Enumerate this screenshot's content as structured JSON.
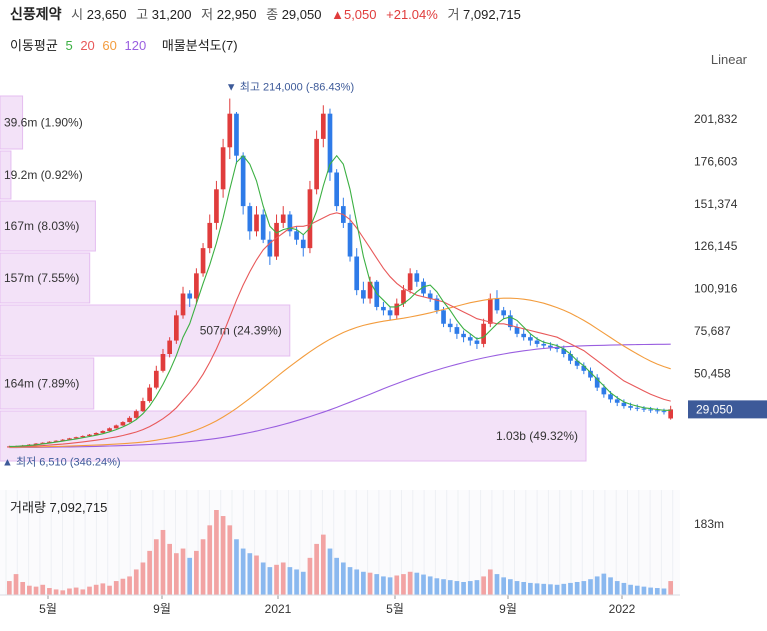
{
  "header": {
    "name": "신풍제약",
    "open_label": "시",
    "open": "23,650",
    "high_label": "고",
    "high": "31,200",
    "low_label": "저",
    "low": "22,950",
    "close_label": "종",
    "close": "29,050",
    "change": "▲5,050",
    "change_pct": "+21.04%",
    "volume_label": "거",
    "volume": "7,092,715",
    "ma_label": "이동평균",
    "ma5": "5",
    "ma20": "20",
    "ma60": "60",
    "ma120": "120",
    "volume_profile_label": "매물분석도(7)"
  },
  "scale_mode": "Linear",
  "colors": {
    "up": "#e03c3c",
    "down": "#2e7be8",
    "ma5": "#3cb043",
    "ma20": "#e8595a",
    "ma60": "#f39c3d",
    "ma120": "#9a5fe0",
    "profile_fill": "#f3e2f8",
    "profile_stroke": "#e4bdf0",
    "price_tag": "#3d5a99"
  },
  "chart_data": {
    "type": "candlestick",
    "y_ticks": [
      "201,832",
      "176,603",
      "151,374",
      "126,145",
      "100,916",
      "75,687",
      "50,458"
    ],
    "y_tick_values": [
      201832,
      176603,
      151374,
      126145,
      100916,
      75687,
      50458
    ],
    "x_ticks": [
      "5월",
      "9월",
      "2021",
      "5월",
      "9월",
      "2022"
    ],
    "current_price": "29,050",
    "high_marker": {
      "label": "최고",
      "price": "214,000",
      "pct": "(-86.43%)"
    },
    "low_marker": {
      "label": "최저",
      "price": "6,510",
      "pct": "(346.24%)"
    },
    "volume_profile": [
      {
        "label": "39.6m (1.90%)",
        "pct": 1.9
      },
      {
        "label": "19.2m (0.92%)",
        "pct": 0.92
      },
      {
        "label": "167m (8.03%)",
        "pct": 8.03
      },
      {
        "label": "157m (7.55%)",
        "pct": 7.55
      },
      {
        "label": "507m (24.39%)",
        "pct": 24.39
      },
      {
        "label": "164m (7.89%)",
        "pct": 7.89
      },
      {
        "label": "1.03b (49.32%)",
        "pct": 49.32
      }
    ],
    "close": [
      7000,
      7200,
      7600,
      8100,
      8700,
      9200,
      9800,
      10400,
      11000,
      11800,
      12500,
      13200,
      14000,
      15000,
      16200,
      17800,
      19500,
      21500,
      24000,
      28000,
      34000,
      42000,
      52000,
      62000,
      70000,
      85000,
      98000,
      95000,
      110000,
      125000,
      140000,
      160000,
      185000,
      205000,
      180000,
      150000,
      135000,
      145000,
      130000,
      120000,
      140000,
      145000,
      135000,
      130000,
      125000,
      160000,
      190000,
      205000,
      170000,
      150000,
      140000,
      120000,
      100000,
      95000,
      105000,
      90000,
      88000,
      85000,
      92000,
      100000,
      110000,
      105000,
      98000,
      95000,
      88000,
      80000,
      78000,
      74000,
      72000,
      70000,
      68000,
      80000,
      95000,
      88000,
      85000,
      78000,
      74000,
      72000,
      70000,
      68000,
      67000,
      66000,
      65000,
      62000,
      58000,
      55000,
      52000,
      48000,
      42000,
      38000,
      35000,
      33000,
      31000,
      30000,
      29500,
      29000,
      28500,
      28000,
      27500,
      29050
    ],
    "open": [
      6800,
      7000,
      7200,
      7600,
      8100,
      8700,
      9200,
      9800,
      10400,
      11000,
      11800,
      12500,
      13200,
      14000,
      15000,
      16200,
      17800,
      19500,
      21500,
      24000,
      28000,
      34000,
      42000,
      52000,
      62000,
      70000,
      85000,
      98000,
      95000,
      110000,
      125000,
      140000,
      160000,
      185000,
      205000,
      180000,
      150000,
      135000,
      145000,
      130000,
      120000,
      140000,
      145000,
      135000,
      130000,
      125000,
      160000,
      190000,
      205000,
      170000,
      150000,
      140000,
      120000,
      100000,
      95000,
      105000,
      90000,
      88000,
      85000,
      92000,
      100000,
      110000,
      105000,
      98000,
      95000,
      88000,
      80000,
      78000,
      74000,
      72000,
      70000,
      68000,
      80000,
      95000,
      88000,
      85000,
      78000,
      74000,
      72000,
      70000,
      68000,
      67000,
      66000,
      65000,
      62000,
      58000,
      55000,
      52000,
      48000,
      42000,
      38000,
      35000,
      33000,
      31000,
      30000,
      29500,
      29000,
      28500,
      28000,
      23650
    ],
    "high": [
      7400,
      7500,
      7900,
      8400,
      9000,
      9500,
      10100,
      10700,
      11400,
      12100,
      12800,
      13600,
      14400,
      15400,
      16600,
      18300,
      20000,
      22000,
      25000,
      29000,
      36000,
      44000,
      55000,
      65000,
      72000,
      88000,
      102000,
      100000,
      113000,
      128000,
      145000,
      165000,
      190000,
      214000,
      206000,
      182000,
      152000,
      150000,
      148000,
      135000,
      145000,
      150000,
      147000,
      138000,
      133000,
      165000,
      195000,
      210000,
      208000,
      172000,
      155000,
      145000,
      125000,
      105000,
      108000,
      106000,
      93000,
      90000,
      95000,
      103000,
      113000,
      112000,
      107000,
      100000,
      97000,
      90000,
      83000,
      80000,
      76000,
      74000,
      72000,
      83000,
      98000,
      100000,
      90000,
      88000,
      80000,
      77000,
      74000,
      72000,
      70000,
      69000,
      68000,
      67000,
      64000,
      60000,
      57000,
      54000,
      50000,
      44000,
      40000,
      37000,
      35000,
      33000,
      32000,
      31000,
      30500,
      30000,
      29500,
      31200
    ],
    "low": [
      6510,
      6800,
      7000,
      7400,
      7900,
      8400,
      9000,
      9600,
      10200,
      10800,
      11600,
      12300,
      13000,
      13800,
      14800,
      16000,
      17600,
      19200,
      21200,
      23500,
      27500,
      33000,
      41000,
      51000,
      60000,
      68000,
      83000,
      90000,
      92000,
      108000,
      122000,
      136000,
      155000,
      178000,
      175000,
      145000,
      130000,
      132000,
      128000,
      115000,
      118000,
      137000,
      132000,
      127000,
      120000,
      122000,
      157000,
      185000,
      165000,
      147000,
      137000,
      117000,
      97000,
      92000,
      92000,
      88000,
      85000,
      82000,
      83000,
      90000,
      98000,
      102000,
      96000,
      93000,
      86000,
      78000,
      75000,
      71000,
      69000,
      67000,
      65000,
      66000,
      78000,
      86000,
      83000,
      76000,
      72000,
      70000,
      67000,
      66000,
      65000,
      64000,
      63000,
      60000,
      56000,
      53000,
      50000,
      46000,
      40000,
      36000,
      33000,
      31000,
      29500,
      28500,
      28000,
      27500,
      27000,
      26500,
      26000,
      22950
    ],
    "ma5": [
      7000,
      7100,
      7300,
      7600,
      8000,
      8500,
      9000,
      9600,
      10200,
      10800,
      11500,
      12200,
      12900,
      13700,
      14600,
      15700,
      17000,
      18600,
      20500,
      23000,
      26500,
      31000,
      37000,
      44000,
      52000,
      61000,
      72000,
      80000,
      92000,
      104000,
      115000,
      128000,
      143000,
      160000,
      176000,
      180000,
      175000,
      165000,
      150000,
      138000,
      134000,
      136000,
      137000,
      136000,
      133000,
      137000,
      147000,
      162000,
      175000,
      180000,
      175000,
      160000,
      140000,
      120000,
      105000,
      98000,
      94000,
      90000,
      90000,
      92000,
      95000,
      99000,
      102000,
      103000,
      99000,
      93000,
      88000,
      82000,
      77000,
      74000,
      71000,
      72000,
      76000,
      80000,
      83000,
      84000,
      82000,
      78000,
      74000,
      71000,
      69000,
      68000,
      67000,
      65000,
      62000,
      58000,
      55000,
      51000,
      47000,
      43000,
      39000,
      36000,
      33500,
      32000,
      31000,
      30000,
      29500,
      29000,
      28500,
      28500
    ],
    "ma20": [
      6800,
      6900,
      7000,
      7100,
      7300,
      7500,
      7800,
      8100,
      8400,
      8800,
      9200,
      9700,
      10200,
      10700,
      11300,
      12000,
      12700,
      13500,
      14500,
      15600,
      17000,
      18800,
      21000,
      23500,
      26500,
      30000,
      34500,
      39000,
      44000,
      50000,
      57000,
      65000,
      74000,
      84000,
      94000,
      103000,
      111000,
      118000,
      124000,
      128000,
      131000,
      134000,
      137000,
      138000,
      138000,
      139000,
      141000,
      143000,
      145000,
      146000,
      145000,
      142000,
      137000,
      131000,
      125000,
      119000,
      113000,
      108000,
      104000,
      101000,
      99000,
      97000,
      96000,
      95000,
      94000,
      93000,
      91000,
      89000,
      87000,
      85000,
      83000,
      82000,
      81000,
      80000,
      80000,
      79000,
      78000,
      77000,
      76000,
      75000,
      74000,
      73000,
      72000,
      70000,
      68000,
      66000,
      64000,
      61000,
      58000,
      55000,
      52000,
      49000,
      46000,
      44000,
      42000,
      40000,
      38000,
      36500,
      35000,
      34000
    ],
    "ma60": [
      6500,
      6550,
      6600,
      6650,
      6700,
      6800,
      6900,
      7000,
      7100,
      7200,
      7350,
      7500,
      7650,
      7800,
      8000,
      8200,
      8400,
      8650,
      8900,
      9200,
      9600,
      10100,
      10700,
      11400,
      12200,
      13100,
      14200,
      15400,
      16800,
      18400,
      20200,
      22200,
      24500,
      27000,
      29700,
      32600,
      35600,
      38700,
      41900,
      45100,
      48300,
      51500,
      54600,
      57600,
      60500,
      63300,
      66000,
      68500,
      70800,
      72900,
      74800,
      76400,
      77800,
      79000,
      80000,
      80800,
      81500,
      82100,
      82700,
      83300,
      84000,
      84800,
      85600,
      86500,
      87500,
      88500,
      89500,
      90500,
      91500,
      92500,
      93300,
      94000,
      94600,
      95000,
      95200,
      95200,
      95000,
      94600,
      94000,
      93200,
      92200,
      91000,
      89600,
      88000,
      86200,
      84200,
      82000,
      79600,
      77000,
      74400,
      71800,
      69200,
      66700,
      64300,
      62000,
      59800,
      57800,
      56000,
      54500,
      53200
    ],
    "ma120": [
      6300,
      6330,
      6360,
      6400,
      6440,
      6480,
      6530,
      6580,
      6640,
      6700,
      6770,
      6850,
      6930,
      7020,
      7120,
      7230,
      7350,
      7480,
      7620,
      7780,
      7960,
      8160,
      8380,
      8630,
      8900,
      9200,
      9530,
      9900,
      10300,
      10750,
      11250,
      11800,
      12400,
      13050,
      13750,
      14500,
      15300,
      16150,
      17050,
      18000,
      19000,
      20050,
      21150,
      22300,
      23500,
      24750,
      26050,
      27400,
      28800,
      30250,
      31750,
      33300,
      34900,
      36500,
      38100,
      39700,
      41300,
      42900,
      44400,
      45900,
      47300,
      48700,
      50000,
      51300,
      52500,
      53700,
      54800,
      55900,
      56900,
      57900,
      58800,
      59700,
      60500,
      61300,
      62000,
      62700,
      63300,
      63900,
      64400,
      64900,
      65300,
      65700,
      66000,
      66300,
      66500,
      66700,
      66900,
      67000,
      67100,
      67200,
      67300,
      67400,
      67500,
      67550,
      67600,
      67650,
      67700,
      67750,
      67800,
      67850
    ],
    "volume": [
      30,
      45,
      28,
      20,
      18,
      22,
      15,
      12,
      10,
      14,
      16,
      12,
      18,
      22,
      25,
      20,
      30,
      35,
      40,
      55,
      70,
      95,
      120,
      140,
      110,
      90,
      100,
      80,
      95,
      120,
      150,
      183,
      170,
      150,
      120,
      100,
      90,
      85,
      70,
      60,
      65,
      70,
      60,
      55,
      50,
      80,
      110,
      130,
      100,
      80,
      70,
      60,
      55,
      50,
      48,
      45,
      40,
      38,
      42,
      45,
      50,
      48,
      44,
      40,
      36,
      34,
      32,
      30,
      28,
      30,
      32,
      40,
      55,
      45,
      38,
      34,
      30,
      28,
      26,
      25,
      24,
      23,
      22,
      24,
      26,
      28,
      30,
      34,
      40,
      46,
      38,
      30,
      26,
      22,
      20,
      18,
      16,
      15,
      14,
      30
    ],
    "volume_axis_label": "183m",
    "volume_title": "거래량",
    "volume_value": "7,092,715"
  }
}
